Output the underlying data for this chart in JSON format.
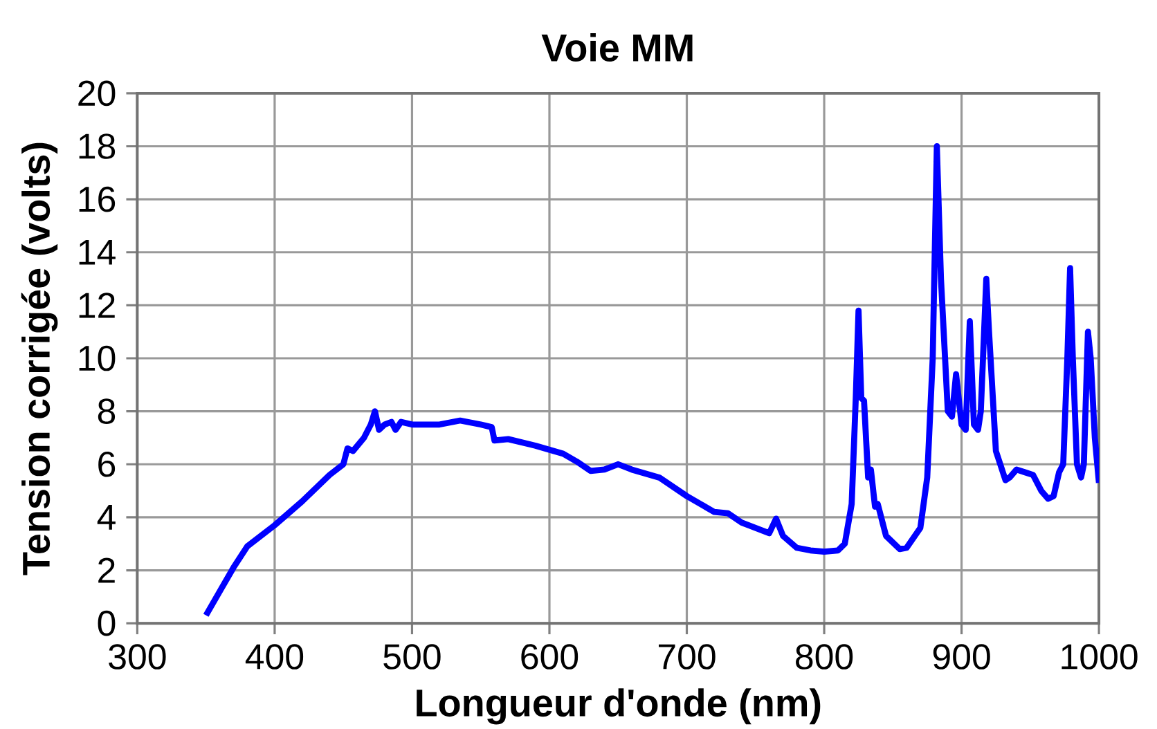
{
  "chart_data": {
    "type": "line",
    "title": "Voie MM",
    "xlabel": "Longueur d'onde (nm)",
    "ylabel": "Tension corrigée (volts)",
    "xlim": [
      300,
      1000
    ],
    "xticks": [
      300,
      400,
      500,
      600,
      700,
      800,
      900,
      1000
    ],
    "ylim": [
      0,
      20
    ],
    "yticks": [
      0,
      2,
      4,
      6,
      8,
      10,
      12,
      14,
      16,
      18,
      20
    ],
    "grid": true,
    "legend": false,
    "marker": "none",
    "line_style": "solid",
    "series": [
      {
        "color": "#0000ff",
        "x": [
          350,
          360,
          370,
          380,
          400,
          420,
          440,
          450,
          453,
          457,
          465,
          470,
          473,
          476,
          480,
          485,
          488,
          492,
          500,
          520,
          535,
          550,
          558,
          560,
          570,
          590,
          610,
          620,
          630,
          640,
          650,
          660,
          680,
          700,
          720,
          730,
          740,
          760,
          765,
          770,
          780,
          790,
          800,
          810,
          815,
          820,
          823,
          825,
          827,
          829,
          832,
          834,
          837,
          839,
          845,
          855,
          860,
          870,
          875,
          879,
          882,
          885,
          890,
          893,
          896,
          900,
          903,
          906,
          909,
          912,
          914,
          918,
          920,
          925,
          932,
          935,
          940,
          946,
          952,
          958,
          963,
          967,
          971,
          974,
          977,
          979,
          981,
          984,
          987,
          989,
          992,
          994,
          997,
          1000
        ],
        "values": [
          0.3,
          1.2,
          2.1,
          2.9,
          3.7,
          4.6,
          5.6,
          6.0,
          6.6,
          6.5,
          7.0,
          7.5,
          8.0,
          7.3,
          7.5,
          7.6,
          7.3,
          7.6,
          7.5,
          7.5,
          7.65,
          7.5,
          7.4,
          6.9,
          6.95,
          6.7,
          6.4,
          6.1,
          5.75,
          5.8,
          6.0,
          5.8,
          5.5,
          4.8,
          4.2,
          4.15,
          3.8,
          3.4,
          3.95,
          3.3,
          2.85,
          2.75,
          2.7,
          2.75,
          3.0,
          4.5,
          8.5,
          11.8,
          8.5,
          8.4,
          5.5,
          5.8,
          4.4,
          4.5,
          3.3,
          2.8,
          2.85,
          3.6,
          5.5,
          10.0,
          18.0,
          13.0,
          8.0,
          7.8,
          9.4,
          7.5,
          7.3,
          11.4,
          7.5,
          7.3,
          8.0,
          13.0,
          11.0,
          6.5,
          5.4,
          5.5,
          5.8,
          5.7,
          5.6,
          5.0,
          4.7,
          4.8,
          5.7,
          6.0,
          10.0,
          13.4,
          10.0,
          6.0,
          5.5,
          6.0,
          11.0,
          10.0,
          7.0,
          5.3
        ]
      }
    ]
  }
}
